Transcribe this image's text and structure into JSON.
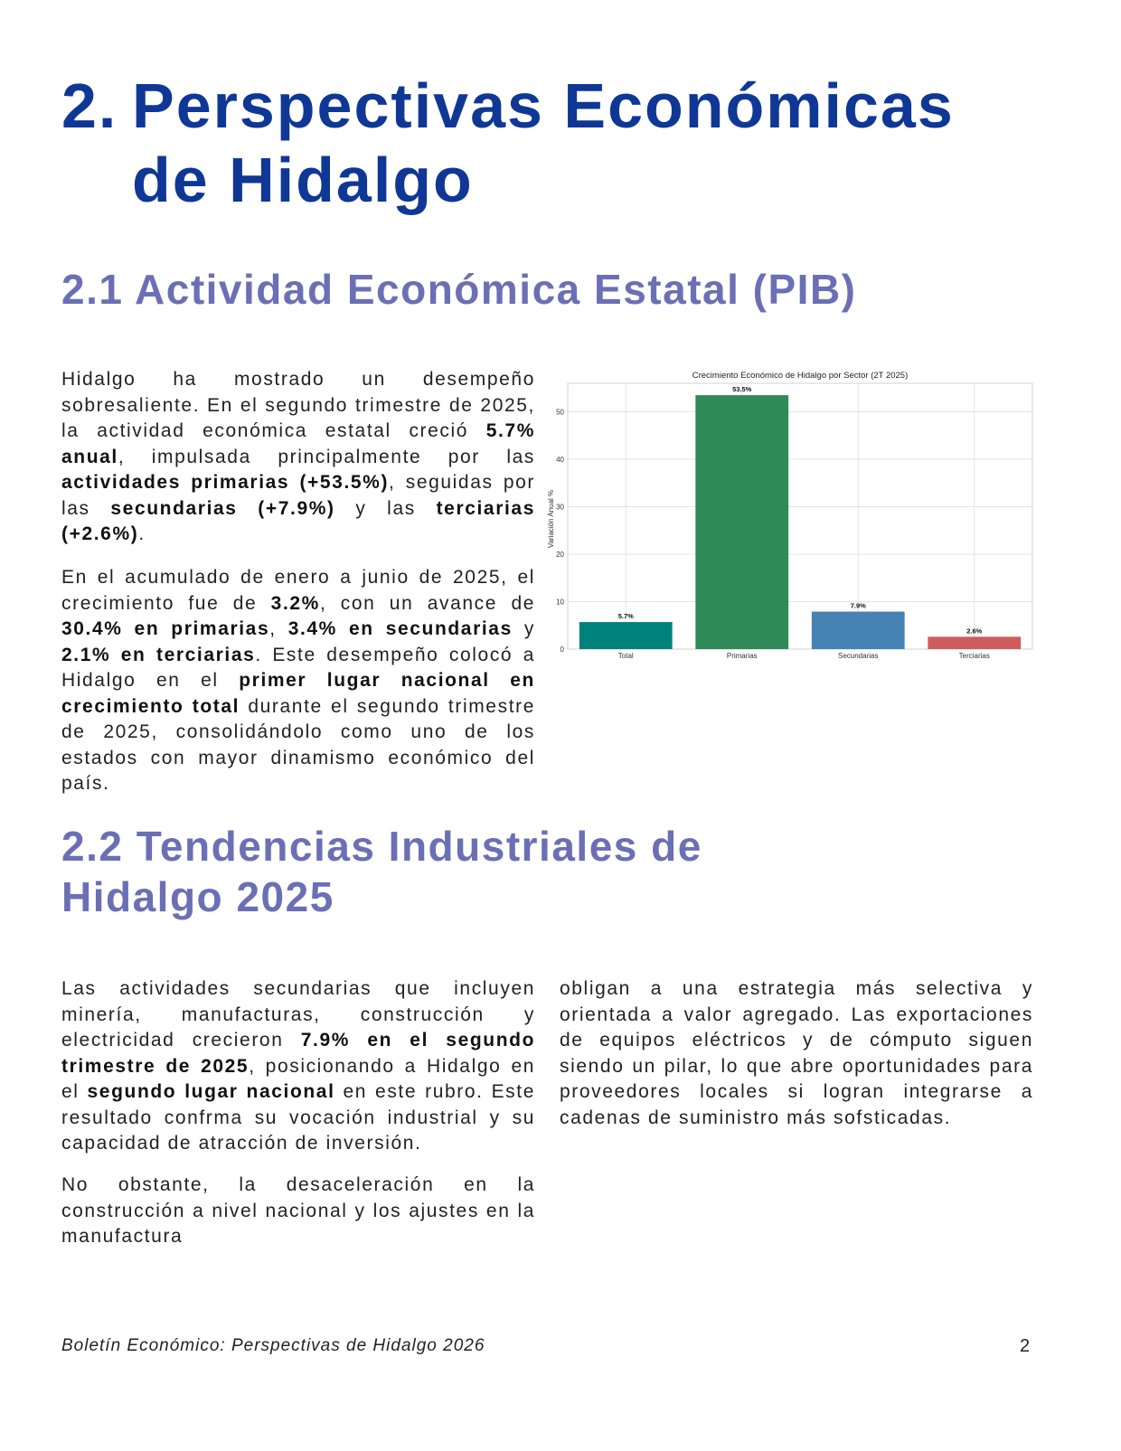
{
  "heading1": {
    "number": "2.",
    "line1": "Perspectivas Económicas",
    "line2": "de Hidalgo"
  },
  "section_2_1": {
    "title": "2.1 Actividad Económica Estatal (PIB)",
    "p1": [
      {
        "t": "Hidalgo ha mostrado un desempeño sobresaliente. En el segundo trimestre de 2025, la actividad económica estatal creció "
      },
      {
        "t": "5.7% anual",
        "b": true
      },
      {
        "t": ", impulsada principalmente por las "
      },
      {
        "t": "actividades primarias (+53.5%)",
        "b": true
      },
      {
        "t": ", seguidas por las "
      },
      {
        "t": "secundarias (+7.9%)",
        "b": true
      },
      {
        "t": " y las "
      },
      {
        "t": "terciarias (+2.6%)",
        "b": true
      },
      {
        "t": "."
      }
    ],
    "p2": [
      {
        "t": "En el acumulado de enero a junio de 2025, el crecimiento fue de "
      },
      {
        "t": "3.2%",
        "b": true
      },
      {
        "t": ", con un avance de "
      },
      {
        "t": "30.4% en primarias",
        "b": true
      },
      {
        "t": ", "
      },
      {
        "t": "3.4% en secundarias",
        "b": true
      },
      {
        "t": " y "
      },
      {
        "t": "2.1% en terciarias",
        "b": true
      },
      {
        "t": ". Este desempeño colocó a Hidalgo en el "
      },
      {
        "t": "primer lugar nacional en crecimiento total",
        "b": true
      },
      {
        "t": " durante el segundo trimestre de 2025, consolidándolo como uno de los estados con mayor dinamismo económico del país."
      }
    ]
  },
  "section_2_2": {
    "title_line1": "2.2 Tendencias Industriales de",
    "title_line2": "Hidalgo 2025",
    "p1": [
      {
        "t": "Las actividades secundarias que incluyen minería, manufacturas, construcción y electricidad crecieron "
      },
      {
        "t": "7.9% en el segundo trimestre de 2025",
        "b": true
      },
      {
        "t": ", posicionando a Hidalgo en el "
      },
      {
        "t": "segundo lugar nacional",
        "b": true
      },
      {
        "t": " en este rubro. Este resultado confrma su vocación industrial y su capacidad de atracción de inversión."
      }
    ],
    "p2": [
      {
        "t": "No obstante, la desaceleración en la construcción a nivel nacional y los ajustes en la manufactura"
      }
    ],
    "p3": [
      {
        "t": "obligan a una estrategia más selectiva y orientada a valor agregado. Las exportaciones de equipos eléctricos y de cómputo siguen siendo un pilar, lo que abre oportunidades para proveedores locales si logran integrarse a cadenas de suministro más sofsticadas."
      }
    ]
  },
  "chart_data": {
    "type": "bar",
    "title": "Crecimiento Económico de Hidalgo por Sector (2T 2025)",
    "ylabel": "Variación Anual %",
    "xlabel": "",
    "categories": [
      "Total",
      "Primarias",
      "Secundarias",
      "Terciarias"
    ],
    "values": [
      5.7,
      53.5,
      7.9,
      2.6
    ],
    "value_labels": [
      "5.7%",
      "53.5%",
      "7.9%",
      "2.6%"
    ],
    "colors": [
      "#00827c",
      "#2e8b57",
      "#4682b4",
      "#cd5c5c"
    ],
    "ylim": [
      0,
      56
    ],
    "yticks": [
      0,
      10,
      20,
      30,
      40,
      50
    ],
    "grid": true
  },
  "footer": {
    "left": "Boletín Económico: Perspectivas de Hidalgo 2026",
    "page": "2"
  }
}
